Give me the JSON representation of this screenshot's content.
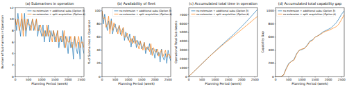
{
  "chart_data": [
    {
      "type": "line",
      "title": "(a) Submarines in operation",
      "x_label": "Planning Period (week)",
      "y_label": "Number of Submarines in Operation",
      "x": [
        0,
        50,
        100,
        150,
        200,
        250,
        300,
        350,
        400,
        450,
        500,
        550,
        600,
        650,
        700,
        750,
        800,
        850,
        900,
        950,
        1000,
        1050,
        1100,
        1150,
        1200,
        1250,
        1300,
        1350,
        1400,
        1450,
        1500,
        1550,
        1600,
        1650,
        1700,
        1750,
        1800,
        1850,
        1900,
        1950,
        2000,
        2050,
        2100,
        2150,
        2200,
        2250,
        2300,
        2350,
        2400,
        2450,
        2500,
        2550,
        2600
      ],
      "series": [
        {
          "name": "no extension + additional subs (Option 3)",
          "color": "#1f77b4",
          "values": [
            10,
            8,
            11,
            9,
            7,
            10,
            8,
            11,
            7,
            9,
            10,
            8,
            9,
            10,
            8,
            9,
            10,
            7,
            9,
            8,
            7,
            9,
            6,
            8,
            7,
            9,
            6,
            8,
            7,
            8,
            6,
            7,
            8,
            5,
            7,
            6,
            8,
            5,
            7,
            6,
            4,
            7,
            5,
            6,
            3,
            7,
            5,
            4,
            6,
            3,
            7,
            5,
            4
          ]
        },
        {
          "name": "no extension + split acquisition (Option 4)",
          "color": "#ff7f0e",
          "values": [
            10,
            9,
            10,
            8,
            9,
            11,
            7,
            10,
            8,
            10,
            9,
            9,
            8,
            10,
            9,
            8,
            10,
            8,
            8,
            9,
            8,
            7,
            8,
            7,
            9,
            7,
            8,
            7,
            6,
            8,
            7,
            6,
            8,
            6,
            7,
            7,
            6,
            8,
            5,
            7,
            6,
            6,
            7,
            5,
            6,
            7,
            5,
            6,
            7,
            5,
            6,
            6,
            5
          ]
        }
      ],
      "xlim": [
        0,
        2600
      ],
      "xticks": [
        0,
        500,
        1000,
        1500,
        2000,
        2500
      ],
      "ylim": [
        0,
        12
      ],
      "yticks": [
        0,
        2,
        4,
        6,
        8,
        10,
        12
      ],
      "legend": "upper right"
    },
    {
      "type": "line",
      "title": "(b) Availability of fleet",
      "x_label": "Planning Period (week)",
      "y_label": "% of Submarines in Operation",
      "x": [
        0,
        50,
        100,
        150,
        200,
        250,
        300,
        350,
        400,
        450,
        500,
        550,
        600,
        650,
        700,
        750,
        800,
        850,
        900,
        950,
        1000,
        1050,
        1100,
        1150,
        1200,
        1250,
        1300,
        1350,
        1400,
        1450,
        1500,
        1550,
        1600,
        1650,
        1700,
        1750,
        1800,
        1850,
        1900,
        1950,
        2000,
        2050,
        2100,
        2150,
        2200,
        2250,
        2300,
        2350,
        2400,
        2450,
        2500,
        2550,
        2600
      ],
      "series": [
        {
          "name": "no extension + additional subs (Option 3)",
          "color": "#1f77b4",
          "values": [
            100,
            80,
            95,
            82,
            70,
            85,
            72,
            88,
            65,
            75,
            80,
            68,
            72,
            78,
            64,
            70,
            74,
            55,
            68,
            60,
            55,
            65,
            45,
            58,
            52,
            62,
            44,
            55,
            48,
            54,
            42,
            46,
            52,
            35,
            45,
            40,
            50,
            33,
            43,
            38,
            28,
            42,
            32,
            37,
            22,
            42,
            30,
            25,
            35,
            20,
            40,
            30,
            24
          ]
        },
        {
          "name": "no extension + split acquisition (Option 4)",
          "color": "#ff7f0e",
          "values": [
            100,
            88,
            90,
            75,
            80,
            92,
            65,
            85,
            70,
            82,
            75,
            74,
            65,
            78,
            70,
            62,
            75,
            60,
            60,
            66,
            58,
            52,
            58,
            50,
            62,
            50,
            55,
            48,
            42,
            54,
            46,
            40,
            52,
            40,
            45,
            45,
            38,
            50,
            32,
            44,
            38,
            37,
            42,
            31,
            36,
            41,
            30,
            35,
            40,
            29,
            34,
            34,
            28
          ]
        }
      ],
      "xlim": [
        0,
        2600
      ],
      "xticks": [
        0,
        500,
        1000,
        1500,
        2000,
        2500
      ],
      "ylim": [
        0,
        105
      ],
      "yticks": [
        0,
        20,
        40,
        60,
        80,
        100
      ],
      "legend": "upper right"
    },
    {
      "type": "line",
      "title": "(c) Accumulated total time in operation",
      "x_label": "Planning Period (week)",
      "y_label": "Operational Total Sub-Weeks",
      "x": [
        0,
        100,
        200,
        300,
        400,
        500,
        600,
        700,
        800,
        900,
        1000,
        1100,
        1200,
        1300,
        1400,
        1500,
        1600,
        1700,
        1800,
        1900,
        2000,
        2100,
        2200,
        2300,
        2400,
        2500,
        2600
      ],
      "series": [
        {
          "name": "no extension + additional subs (Option 3)",
          "color": "#1f77b4",
          "values": [
            0,
            290,
            580,
            870,
            1160,
            1450,
            1740,
            2030,
            2320,
            2600,
            2880,
            3160,
            3430,
            3700,
            3970,
            4240,
            4510,
            4780,
            5060,
            5350,
            5650,
            5960,
            6280,
            6600,
            6930,
            7260,
            7580
          ]
        },
        {
          "name": "no extension + split acquisition (Option 4)",
          "color": "#ff7f0e",
          "values": [
            0,
            290,
            580,
            870,
            1160,
            1450,
            1740,
            2020,
            2300,
            2570,
            2840,
            3100,
            3360,
            3610,
            3860,
            4100,
            4340,
            4580,
            4820,
            5060,
            5310,
            5560,
            5810,
            6060,
            6310,
            6560,
            6800
          ]
        }
      ],
      "xlim": [
        0,
        2600
      ],
      "xticks": [
        0,
        500,
        1000,
        1500,
        2000,
        2500
      ],
      "ylim": [
        0,
        7800
      ],
      "yticks": [
        0,
        1000,
        2000,
        3000,
        4000,
        5000,
        6000,
        7000
      ],
      "legend": "upper left"
    },
    {
      "type": "line",
      "title": "(d) Accumulated total capability gap",
      "x_label": "Planning Period (week)",
      "y_label": "Capability Gap",
      "x": [
        0,
        100,
        200,
        300,
        400,
        500,
        600,
        700,
        800,
        900,
        1000,
        1100,
        1200,
        1300,
        1400,
        1500,
        1600,
        1700,
        1800,
        1900,
        2000,
        2100,
        2200,
        2300,
        2400,
        2500,
        2600
      ],
      "series": [
        {
          "name": "no extension + additional subs (Option 3)",
          "color": "#1f77b4",
          "values": [
            0,
            0,
            0,
            20,
            120,
            200,
            230,
            260,
            350,
            400,
            410,
            430,
            480,
            540,
            560,
            600,
            620,
            650,
            680,
            700,
            720,
            740,
            780,
            820,
            880,
            950,
            1000
          ]
        },
        {
          "name": "no extension + split acquisition (Option 4)",
          "color": "#ff7f0e",
          "values": [
            0,
            0,
            0,
            20,
            110,
            190,
            230,
            250,
            340,
            400,
            420,
            430,
            470,
            530,
            550,
            600,
            620,
            640,
            670,
            690,
            700,
            720,
            740,
            760,
            800,
            870,
            940
          ]
        }
      ],
      "xlim": [
        0,
        2600
      ],
      "xticks": [
        0,
        500,
        1000,
        1500,
        2000,
        2500
      ],
      "ylim": [
        0,
        1050
      ],
      "yticks": [
        0,
        200,
        400,
        600,
        800,
        1000
      ],
      "legend": "upper left"
    }
  ]
}
